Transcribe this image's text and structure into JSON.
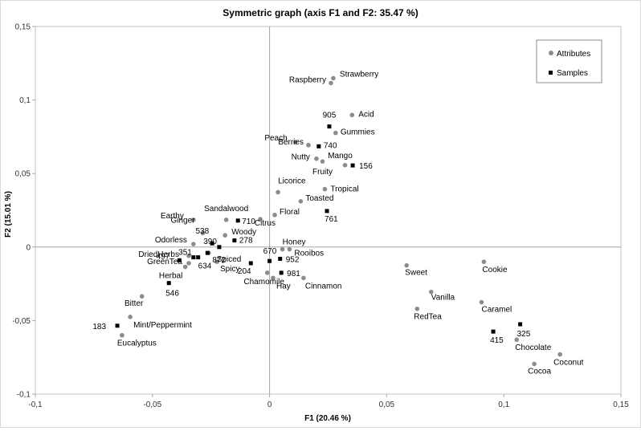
{
  "chart_data": {
    "type": "scatter",
    "title": "Symmetric graph (axis F1 and F2: 35.47 %)",
    "xlabel": "F1 (20.46 %)",
    "ylabel": "F2 (15.01 %)",
    "xlim": [
      -0.1,
      0.15
    ],
    "ylim": [
      -0.1,
      0.15
    ],
    "xticks": [
      "-0,1",
      "-0,05",
      "0",
      "0,05",
      "0,1",
      "0,15"
    ],
    "yticks": [
      "-0,1",
      "-0,05",
      "0",
      "0,05",
      "0,1",
      "0,15"
    ],
    "grid": false,
    "legend_position": "top-right",
    "legend": [
      "Attributes",
      "Samples"
    ],
    "series": [
      {
        "name": "Attributes",
        "color": "#8c8c8c",
        "marker": "circle",
        "points": [
          {
            "label": "Strawberry",
            "x": 0.0272,
            "y": 0.1148
          },
          {
            "label": "Raspberry",
            "x": 0.0262,
            "y": 0.1115
          },
          {
            "label": "Acid",
            "x": 0.0352,
            "y": 0.0898
          },
          {
            "label": "Gummies",
            "x": 0.0282,
            "y": 0.0776
          },
          {
            "label": "Berries",
            "x": 0.0166,
            "y": 0.0693
          },
          {
            "label": "Peach",
            "x": 0.011,
            "y": 0.0714
          },
          {
            "label": "Nutty",
            "x": 0.02,
            "y": 0.0601
          },
          {
            "label": "Fruity",
            "x": 0.0226,
            "y": 0.0582
          },
          {
            "label": "Mango",
            "x": 0.0322,
            "y": 0.0557
          },
          {
            "label": "Tropical",
            "x": 0.0236,
            "y": 0.0394
          },
          {
            "label": "Licorice",
            "x": 0.0036,
            "y": 0.0373
          },
          {
            "label": "Toasted",
            "x": 0.0133,
            "y": 0.0311
          },
          {
            "label": "Floral",
            "x": 0.0022,
            "y": 0.0218
          },
          {
            "label": "Citrus",
            "x": -0.004,
            "y": 0.019
          },
          {
            "label": "Sandalwood",
            "x": -0.0185,
            "y": 0.0185
          },
          {
            "label": "Earthy",
            "x": -0.0325,
            "y": 0.0185
          },
          {
            "label": "Ginger",
            "x": -0.0285,
            "y": 0.0095
          },
          {
            "label": "Woody",
            "x": -0.019,
            "y": 0.008
          },
          {
            "label": "Odorless",
            "x": -0.0325,
            "y": 0.002
          },
          {
            "label": "Spiced",
            "x": -0.026,
            "y": -0.004
          },
          {
            "label": "Spicy",
            "x": -0.0225,
            "y": -0.01
          },
          {
            "label": "Honey",
            "x": 0.0055,
            "y": -0.0015
          },
          {
            "label": "Rooibos",
            "x": 0.0085,
            "y": -0.0015
          },
          {
            "label": "Chamomile",
            "x": -0.001,
            "y": -0.0175
          },
          {
            "label": "Hay",
            "x": 0.0015,
            "y": -0.021
          },
          {
            "label": "Cinnamon",
            "x": 0.0145,
            "y": -0.021
          },
          {
            "label": "DriedHerbs",
            "x": -0.0345,
            "y": -0.006
          },
          {
            "label": "GreenTea",
            "x": -0.0345,
            "y": -0.011
          },
          {
            "label": "Herbal",
            "x": -0.036,
            "y": -0.0135
          },
          {
            "label": "Bitter",
            "x": -0.0545,
            "y": -0.0335
          },
          {
            "label": "Mint/Peppermint",
            "x": -0.0595,
            "y": -0.0475
          },
          {
            "label": "Eucalyptus",
            "x": -0.063,
            "y": -0.06
          },
          {
            "label": "Sweet",
            "x": 0.0585,
            "y": -0.0125
          },
          {
            "label": "Cookie",
            "x": 0.0915,
            "y": -0.01
          },
          {
            "label": "Vanilla",
            "x": 0.069,
            "y": -0.0305
          },
          {
            "label": "RedTea",
            "x": 0.063,
            "y": -0.042
          },
          {
            "label": "Caramel",
            "x": 0.0905,
            "y": -0.0375
          },
          {
            "label": "Chocolate",
            "x": 0.1055,
            "y": -0.063
          },
          {
            "label": "Coconut",
            "x": 0.124,
            "y": -0.073
          },
          {
            "label": "Cocoa",
            "x": 0.113,
            "y": -0.0795
          }
        ]
      },
      {
        "name": "Samples",
        "color": "#000000",
        "marker": "square",
        "points": [
          {
            "label": "905",
            "x": 0.0255,
            "y": 0.082
          },
          {
            "label": "740",
            "x": 0.021,
            "y": 0.0685
          },
          {
            "label": "156",
            "x": 0.0355,
            "y": 0.0555
          },
          {
            "label": "761",
            "x": 0.0245,
            "y": 0.0245
          },
          {
            "label": "710",
            "x": -0.0135,
            "y": 0.018
          },
          {
            "label": "278",
            "x": -0.015,
            "y": 0.0045
          },
          {
            "label": "538",
            "x": -0.0245,
            "y": 0.0025
          },
          {
            "label": "390",
            "x": -0.0215,
            "y": 0.0
          },
          {
            "label": "872",
            "x": -0.0265,
            "y": -0.004
          },
          {
            "label": "351",
            "x": -0.0325,
            "y": -0.007
          },
          {
            "label": "634",
            "x": -0.0305,
            "y": -0.007
          },
          {
            "label": "497",
            "x": -0.0385,
            "y": -0.009
          },
          {
            "label": "670",
            "x": 0.0,
            "y": -0.0095
          },
          {
            "label": "952",
            "x": 0.0045,
            "y": -0.008
          },
          {
            "label": "204",
            "x": -0.008,
            "y": -0.011
          },
          {
            "label": "981",
            "x": 0.005,
            "y": -0.0175
          },
          {
            "label": "546",
            "x": -0.043,
            "y": -0.0245
          },
          {
            "label": "183",
            "x": -0.065,
            "y": -0.0535
          },
          {
            "label": "325",
            "x": 0.107,
            "y": -0.0525
          },
          {
            "label": "415",
            "x": 0.0955,
            "y": -0.0575
          }
        ]
      }
    ]
  }
}
